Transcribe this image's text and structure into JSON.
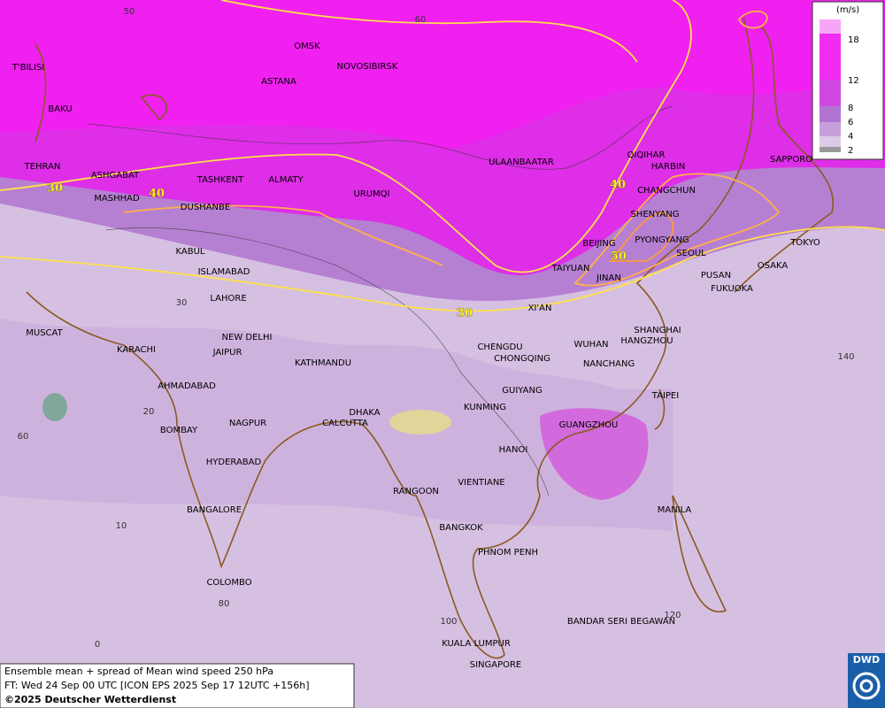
{
  "legend": {
    "unit": "(m/s)",
    "labels": [
      "18",
      "12",
      "8",
      "6",
      "4",
      "2"
    ]
  },
  "cities": [
    "OMSK",
    "NOVOSIBIRSK",
    "ASTANA",
    "T'BILISI",
    "BAKU",
    "TEHRAN",
    "ASHGABAT",
    "MASHHAD",
    "TASHKENT",
    "ALMATY",
    "DUSHANBE",
    "URUMQI",
    "ULAANBAATAR",
    "QIQIHAR",
    "HARBIN",
    "CHANGCHUN",
    "SHENYANG",
    "BEIJING",
    "PYONGYANG",
    "SEOUL",
    "TAIYUAN",
    "JINAN",
    "PUSAN",
    "FUKUOKA",
    "SAPPORO",
    "TOKYO",
    "OSAKA",
    "KABUL",
    "ISLAMABAD",
    "LAHORE",
    "XI'AN",
    "MUSCAT",
    "NEW DELHI",
    "KARACHI",
    "JAIPUR",
    "KATHMANDU",
    "CHENGDU",
    "WUHAN",
    "SHANGHAI",
    "HANGZHOU",
    "CHONGQING",
    "NANCHANG",
    "AHMADABAD",
    "TAIPEI",
    "GUIYANG",
    "DHAKA",
    "KUNMING",
    "CALCUTTA",
    "NAGPUR",
    "GUANGZHOU",
    "BOMBAY",
    "HANOI",
    "HYDERABAD",
    "VIENTIANE",
    "RANGOON",
    "BANGALORE",
    "MANILA",
    "BANGKOK",
    "PHNOM PENH",
    "COLOMBO",
    "BANDAR SERI BEGAWAN",
    "KUALA LUMPUR",
    "SINGAPORE"
  ],
  "grid_labels": [
    "50",
    "60",
    "30",
    "20",
    "60",
    "10",
    "80",
    "0",
    "100",
    "120",
    "140"
  ],
  "contour_labels": [
    "30",
    "40",
    "40",
    "50",
    "30"
  ],
  "footer": {
    "line1": "Ensemble mean + spread of Mean wind speed 250 hPa",
    "line2": "FT: Wed 24 Sep 00 UTC [ICON EPS 2025 Sep 17 12UTC +156h]",
    "line3": "©2025 Deutscher Wetterdienst"
  },
  "logo": "DWD"
}
